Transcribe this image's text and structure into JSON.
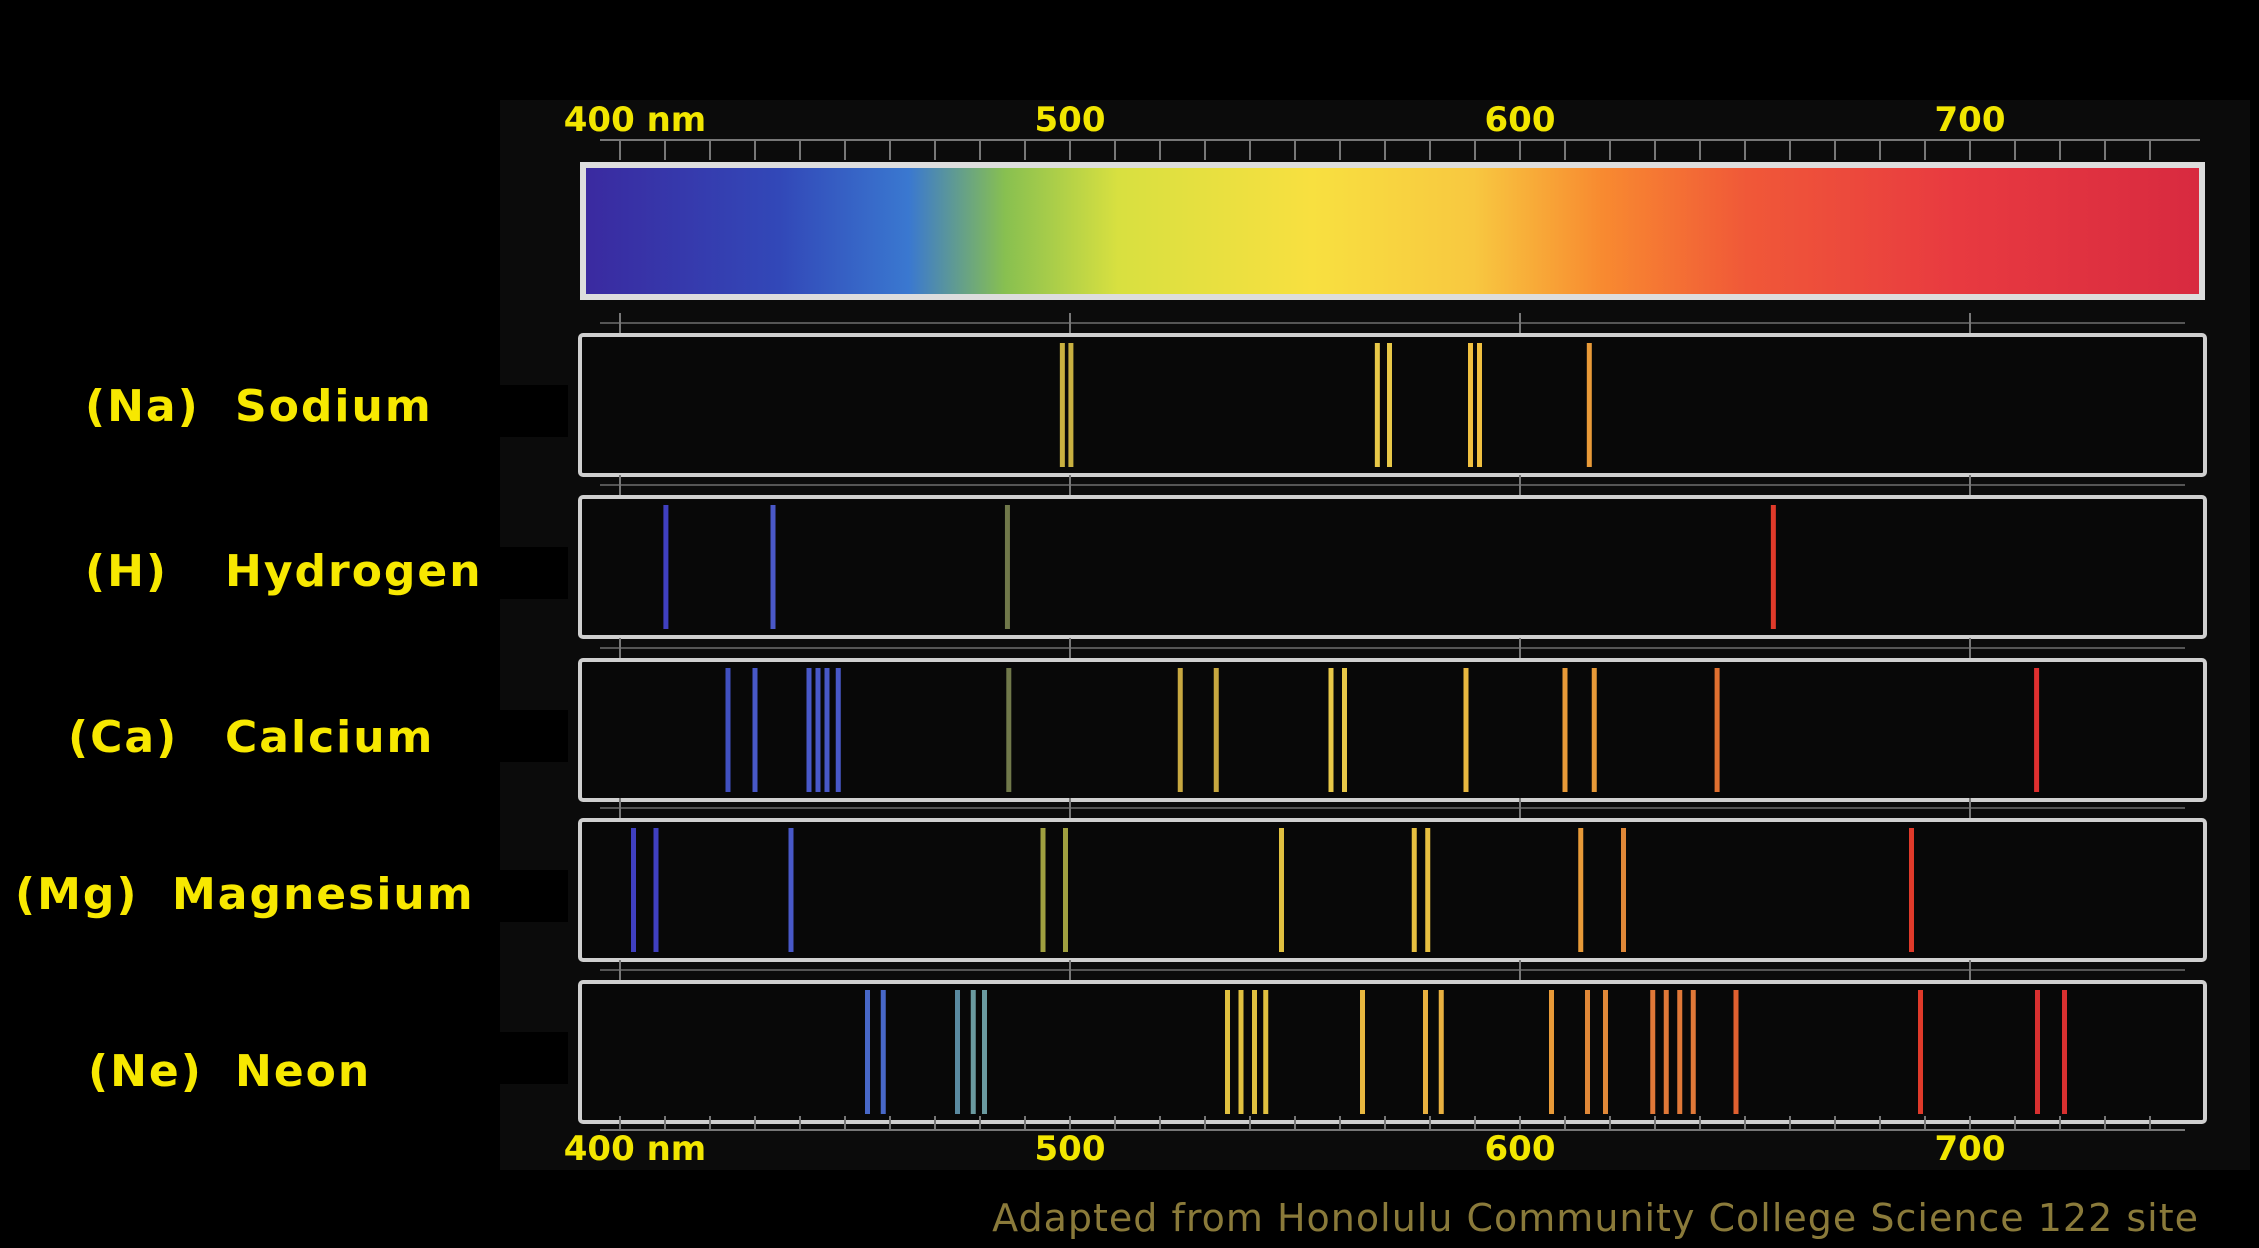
{
  "scale": {
    "top_labels": [
      {
        "nm": 400,
        "text": "400 nm"
      },
      {
        "nm": 500,
        "text": "500"
      },
      {
        "nm": 600,
        "text": "600"
      },
      {
        "nm": 700,
        "text": "700"
      }
    ],
    "bottom_labels": [
      {
        "nm": 400,
        "text": "400 nm"
      },
      {
        "nm": 500,
        "text": "500"
      },
      {
        "nm": 600,
        "text": "600"
      },
      {
        "nm": 700,
        "text": "700"
      }
    ],
    "range_nm": [
      390,
      750
    ]
  },
  "elements": [
    {
      "symbol_label": "(Na)",
      "name": "Sodium",
      "lines_nm": [
        [
          498.3,
          "#c8b040"
        ],
        [
          500.2,
          "#c8b040"
        ],
        [
          568.3,
          "#e8c848"
        ],
        [
          571.0,
          "#e8c848"
        ],
        [
          589.0,
          "#f0c040"
        ],
        [
          591.0,
          "#f0c040"
        ],
        [
          615.4,
          "#e89a38"
        ]
      ]
    },
    {
      "symbol_label": "(H)",
      "name": "Hydrogen",
      "lines_nm": [
        [
          410.2,
          "#4040c0"
        ],
        [
          434.0,
          "#4a58c8"
        ],
        [
          486.1,
          "#70784a"
        ],
        [
          656.3,
          "#e03a2a"
        ]
      ]
    },
    {
      "symbol_label": "(Ca)",
      "name": "Calcium",
      "lines_nm": [
        [
          424.0,
          "#4050c0"
        ],
        [
          430.0,
          "#4858c8"
        ],
        [
          442.0,
          "#4858c8"
        ],
        [
          444.0,
          "#4858c8"
        ],
        [
          446.0,
          "#4858c8"
        ],
        [
          448.5,
          "#4858c8"
        ],
        [
          486.4,
          "#70784a"
        ],
        [
          524.5,
          "#c8a840"
        ],
        [
          532.5,
          "#c8a840"
        ],
        [
          558.0,
          "#e8c848"
        ],
        [
          561.0,
          "#e8c848"
        ],
        [
          588.0,
          "#e8b840"
        ],
        [
          610.0,
          "#e89a38"
        ],
        [
          616.5,
          "#e89a38"
        ],
        [
          643.8,
          "#e07030"
        ],
        [
          714.8,
          "#e03030"
        ]
      ]
    },
    {
      "symbol_label": "(Mg)",
      "name": "Magnesium",
      "lines_nm": [
        [
          403.0,
          "#4040c0"
        ],
        [
          408.0,
          "#4040c0"
        ],
        [
          438.0,
          "#4858c8"
        ],
        [
          494.0,
          "#a0a040"
        ],
        [
          499.0,
          "#a0a040"
        ],
        [
          547.0,
          "#e0c040"
        ],
        [
          576.5,
          "#e8c040"
        ],
        [
          579.5,
          "#e8c040"
        ],
        [
          613.5,
          "#e89a38"
        ],
        [
          623.0,
          "#e08838"
        ],
        [
          687.0,
          "#e03a2a"
        ]
      ]
    },
    {
      "symbol_label": "(Ne)",
      "name": "Neon",
      "lines_nm": [
        [
          455.0,
          "#4868c8"
        ],
        [
          458.5,
          "#4868c8"
        ],
        [
          475.0,
          "#5a8aa0"
        ],
        [
          478.5,
          "#6a9aa0"
        ],
        [
          481.0,
          "#6a9aa0"
        ],
        [
          535.0,
          "#e0c040"
        ],
        [
          538.0,
          "#e0c040"
        ],
        [
          541.0,
          "#e0c040"
        ],
        [
          543.5,
          "#e0c040"
        ],
        [
          565.0,
          "#e8b840"
        ],
        [
          579.0,
          "#e8b040"
        ],
        [
          582.5,
          "#e8b040"
        ],
        [
          607.0,
          "#e89a38"
        ],
        [
          615.0,
          "#e08838"
        ],
        [
          619.0,
          "#e08838"
        ],
        [
          629.5,
          "#e07838"
        ],
        [
          632.5,
          "#e07838"
        ],
        [
          635.5,
          "#e07838"
        ],
        [
          638.5,
          "#e07838"
        ],
        [
          648.0,
          "#e06030"
        ],
        [
          689.0,
          "#e03a2a"
        ],
        [
          715.0,
          "#d83030"
        ],
        [
          721.0,
          "#d83030"
        ]
      ]
    }
  ],
  "credit": "Adapted from Honolulu Community College Science 122 site"
}
